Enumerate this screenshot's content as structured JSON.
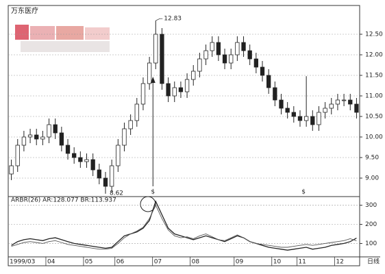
{
  "chart_data": [
    {
      "type": "candlestick",
      "title": "万东医疗",
      "x_label": "日线",
      "categories": [
        "1999/03",
        null,
        null,
        null,
        null,
        null,
        "04",
        null,
        null,
        null,
        null,
        null,
        "05",
        null,
        null,
        null,
        null,
        "06",
        null,
        null,
        null,
        null,
        null,
        "07",
        null,
        null,
        null,
        null,
        null,
        "08",
        null,
        null,
        null,
        null,
        null,
        null,
        "09",
        null,
        null,
        null,
        null,
        null,
        "10",
        null,
        null,
        null,
        "11",
        null,
        null,
        null,
        null,
        null,
        "12",
        null,
        null,
        null
      ],
      "open": [
        9.1,
        9.3,
        9.8,
        10.0,
        10.05,
        9.95,
        10.0,
        10.3,
        10.1,
        9.8,
        9.6,
        9.5,
        9.4,
        9.45,
        9.2,
        9.0,
        8.8,
        9.3,
        9.8,
        10.2,
        10.4,
        10.8,
        11.3,
        11.8,
        12.5,
        11.3,
        11.0,
        11.2,
        11.1,
        11.4,
        11.6,
        11.9,
        12.1,
        12.3,
        12.0,
        11.8,
        12.0,
        12.3,
        12.1,
        11.9,
        11.7,
        11.5,
        11.2,
        10.9,
        10.7,
        10.6,
        10.5,
        10.4,
        10.5,
        10.3,
        10.6,
        10.7,
        10.8,
        10.9,
        10.9,
        10.8
      ],
      "high": [
        9.45,
        9.95,
        10.15,
        10.2,
        10.2,
        10.15,
        10.45,
        10.45,
        10.25,
        9.95,
        9.75,
        9.65,
        9.6,
        9.6,
        9.35,
        9.15,
        9.45,
        9.95,
        10.35,
        10.55,
        10.95,
        11.45,
        11.95,
        12.83,
        12.65,
        11.45,
        11.35,
        11.35,
        11.55,
        11.75,
        12.05,
        12.25,
        12.45,
        12.45,
        12.15,
        12.15,
        12.45,
        12.45,
        12.25,
        12.05,
        11.85,
        11.65,
        11.35,
        11.05,
        10.85,
        10.75,
        10.65,
        11.48,
        10.65,
        10.75,
        10.85,
        10.95,
        11.05,
        11.05,
        11.05,
        10.95
      ],
      "low": [
        8.95,
        9.15,
        9.65,
        9.85,
        9.8,
        9.8,
        9.85,
        9.95,
        9.65,
        9.45,
        9.35,
        9.25,
        9.25,
        9.05,
        8.85,
        8.62,
        8.65,
        9.15,
        9.65,
        10.05,
        10.25,
        10.65,
        11.15,
        11.65,
        11.15,
        10.85,
        10.85,
        10.95,
        10.95,
        11.25,
        11.45,
        11.75,
        11.95,
        11.85,
        11.65,
        11.65,
        11.85,
        11.95,
        11.75,
        11.55,
        11.35,
        11.05,
        10.75,
        10.55,
        10.45,
        10.35,
        10.25,
        10.25,
        10.15,
        10.15,
        10.45,
        10.55,
        10.65,
        10.75,
        10.65,
        10.45
      ],
      "close": [
        9.3,
        9.8,
        10.0,
        10.05,
        9.95,
        10.0,
        10.3,
        10.1,
        9.8,
        9.6,
        9.5,
        9.4,
        9.45,
        9.2,
        9.0,
        8.8,
        9.3,
        9.8,
        10.2,
        10.4,
        10.8,
        11.3,
        11.8,
        12.5,
        11.3,
        11.0,
        11.2,
        11.1,
        11.4,
        11.6,
        11.9,
        12.1,
        12.3,
        12.0,
        11.8,
        12.0,
        12.3,
        12.1,
        11.9,
        11.7,
        11.5,
        11.2,
        10.9,
        10.7,
        10.6,
        10.5,
        10.4,
        10.5,
        10.3,
        10.6,
        10.7,
        10.8,
        10.9,
        10.9,
        10.8,
        10.6
      ],
      "ylim": [
        8.55,
        13.2
      ],
      "yticks": [
        {
          "value": 9,
          "label": "9.00"
        },
        {
          "value": 9.5,
          "label": "9.50"
        },
        {
          "value": 10,
          "label": "10.00"
        },
        {
          "value": 10.5,
          "label": "10.50"
        },
        {
          "value": 11,
          "label": "11.00"
        },
        {
          "value": 11.5,
          "label": "11.50"
        },
        {
          "value": 12,
          "label": "12.00"
        },
        {
          "value": 12.5,
          "label": "12.50"
        }
      ],
      "grid": true,
      "color": "#222222",
      "annotations": [
        {
          "text": "12.83"
        },
        {
          "text": "8.62"
        }
      ],
      "events": [
        "$",
        "$"
      ]
    },
    {
      "type": "line",
      "title": "ARBR(26)  AR:128.077  BR:113.937",
      "series": [
        {
          "color": "#222222",
          "values": [
            90,
            110,
            120,
            125,
            120,
            115,
            125,
            130,
            120,
            110,
            100,
            95,
            90,
            85,
            80,
            75,
            80,
            110,
            140,
            150,
            160,
            180,
            220,
            320,
            250,
            180,
            150,
            140,
            130,
            120,
            130,
            140,
            130,
            120,
            110,
            125,
            140,
            130,
            110,
            100,
            90,
            80,
            75,
            70,
            65,
            70,
            75,
            80,
            70,
            75,
            80,
            90,
            95,
            100,
            110,
            128.077
          ]
        },
        {
          "color": "#555555",
          "values": [
            85,
            95,
            105,
            110,
            105,
            100,
            110,
            115,
            105,
            95,
            90,
            85,
            80,
            75,
            70,
            70,
            75,
            100,
            130,
            150,
            165,
            185,
            230,
            300,
            230,
            170,
            140,
            130,
            135,
            125,
            140,
            150,
            135,
            120,
            115,
            130,
            145,
            130,
            110,
            100,
            95,
            90,
            85,
            80,
            80,
            85,
            90,
            95,
            90,
            95,
            100,
            105,
            110,
            115,
            125,
            113.937
          ]
        }
      ],
      "ylim": [
        30,
        345
      ],
      "yticks": [
        100,
        200,
        300
      ],
      "grid": true
    }
  ]
}
